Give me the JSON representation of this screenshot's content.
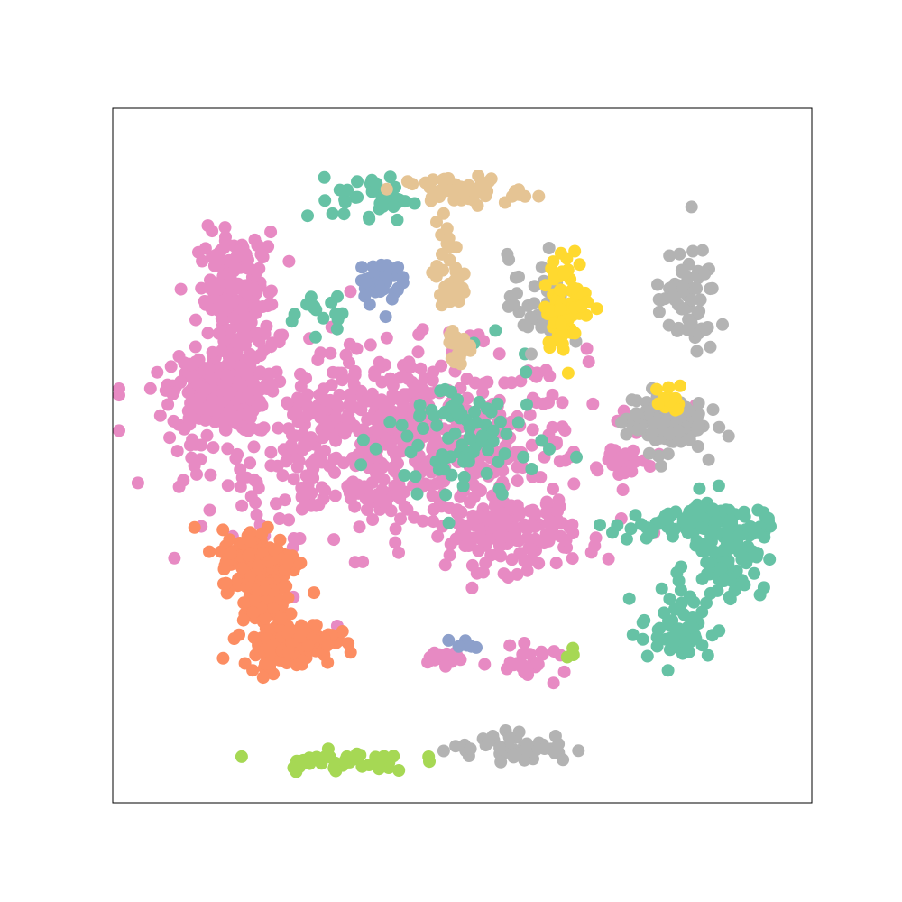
{
  "chart_data": {
    "type": "scatter",
    "title": "",
    "xlabel": "",
    "ylabel": "",
    "axes_visible": false,
    "grid": false,
    "legend": "none",
    "xlim": [
      0,
      100
    ],
    "ylim": [
      0,
      100
    ],
    "palette": [
      "#66c2a5",
      "#fc8d62",
      "#8da0cb",
      "#e78ac3",
      "#a6d854",
      "#ffd92f",
      "#e5c494",
      "#b3b3b3"
    ],
    "series": [
      {
        "color": "#e78ac3",
        "clusters": [
          {
            "cx": 40,
            "cy": 52,
            "rx": 25,
            "ry": 12,
            "n": 650
          },
          {
            "cx": 15,
            "cy": 59,
            "rx": 6,
            "ry": 5,
            "n": 220
          },
          {
            "cx": 18,
            "cy": 72,
            "rx": 5,
            "ry": 9,
            "n": 200
          },
          {
            "cx": 57,
            "cy": 39,
            "rx": 8,
            "ry": 5,
            "n": 140
          },
          {
            "cx": 73,
            "cy": 49,
            "rx": 3,
            "ry": 3,
            "n": 20
          },
          {
            "cx": 47,
            "cy": 21,
            "rx": 3,
            "ry": 1,
            "n": 20
          },
          {
            "cx": 60,
            "cy": 20,
            "rx": 5,
            "ry": 2,
            "n": 25
          }
        ]
      },
      {
        "color": "#66c2a5",
        "clusters": [
          {
            "cx": 50,
            "cy": 52,
            "rx": 10,
            "ry": 10,
            "n": 90
          },
          {
            "cx": 88,
            "cy": 37,
            "rx": 5,
            "ry": 6,
            "n": 130
          },
          {
            "cx": 80,
            "cy": 40,
            "rx": 8,
            "ry": 2,
            "n": 60
          },
          {
            "cx": 81,
            "cy": 25,
            "rx": 5,
            "ry": 5,
            "n": 60
          },
          {
            "cx": 37,
            "cy": 87,
            "rx": 5,
            "ry": 3,
            "n": 35
          },
          {
            "cx": 30,
            "cy": 71,
            "rx": 5,
            "ry": 3,
            "n": 15
          }
        ]
      },
      {
        "color": "#fc8d62",
        "clusters": [
          {
            "cx": 21,
            "cy": 35,
            "rx": 5,
            "ry": 4,
            "n": 170
          },
          {
            "cx": 25,
            "cy": 23,
            "rx": 6,
            "ry": 3,
            "n": 150
          },
          {
            "cx": 22,
            "cy": 29,
            "rx": 3,
            "ry": 3,
            "n": 60
          }
        ]
      },
      {
        "color": "#e5c494",
        "clusters": [
          {
            "cx": 50,
            "cy": 88,
            "rx": 8,
            "ry": 2,
            "n": 45
          },
          {
            "cx": 48,
            "cy": 76,
            "rx": 2,
            "ry": 7,
            "n": 40
          },
          {
            "cx": 50,
            "cy": 65,
            "rx": 1.5,
            "ry": 2,
            "n": 15
          }
        ]
      },
      {
        "color": "#b3b3b3",
        "clusters": [
          {
            "cx": 79,
            "cy": 55,
            "rx": 5,
            "ry": 4,
            "n": 120
          },
          {
            "cx": 82,
            "cy": 72,
            "rx": 4,
            "ry": 7,
            "n": 60
          },
          {
            "cx": 61,
            "cy": 72,
            "rx": 4,
            "ry": 6,
            "n": 40
          },
          {
            "cx": 57,
            "cy": 8,
            "rx": 8,
            "ry": 2,
            "n": 50
          }
        ]
      },
      {
        "color": "#ffd92f",
        "clusters": [
          {
            "cx": 65,
            "cy": 72,
            "rx": 3,
            "ry": 6,
            "n": 80
          },
          {
            "cx": 80,
            "cy": 58,
            "rx": 2,
            "ry": 2,
            "n": 15
          }
        ]
      },
      {
        "color": "#8da0cb",
        "clusters": [
          {
            "cx": 38,
            "cy": 75,
            "rx": 3,
            "ry": 3,
            "n": 40
          },
          {
            "cx": 50,
            "cy": 23,
            "rx": 1.5,
            "ry": 1,
            "n": 6
          }
        ]
      },
      {
        "color": "#a6d854",
        "clusters": [
          {
            "cx": 33,
            "cy": 6,
            "rx": 9,
            "ry": 1.3,
            "n": 45
          },
          {
            "cx": 65,
            "cy": 22,
            "rx": 1,
            "ry": 1,
            "n": 3
          }
        ]
      }
    ]
  }
}
